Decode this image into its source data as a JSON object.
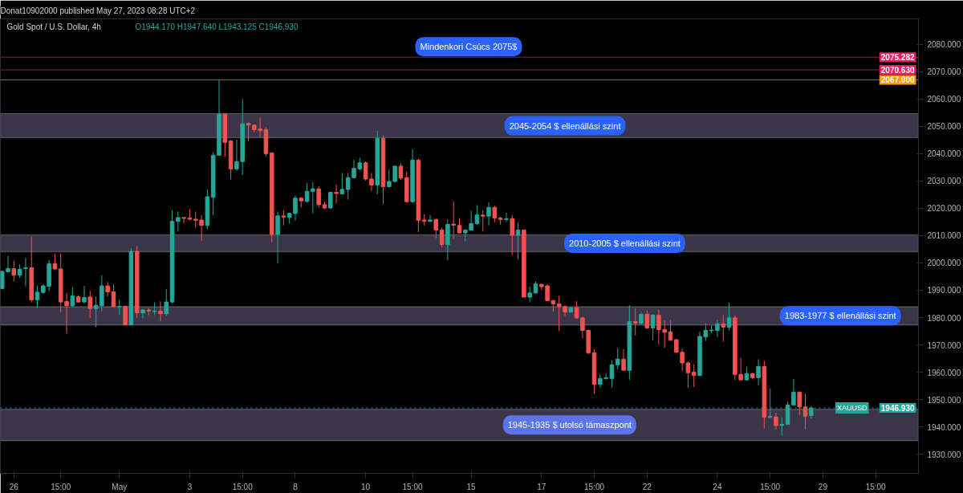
{
  "chart_data": {
    "type": "candlestick",
    "title": "Gold Spot / U.S. Dollar, 4h",
    "subtitle": "Donat10902000 published May 27, 2023 08:28 UTC+2",
    "annotations": [
      "O1944.170 H1947.640 L1943.125 C1946.930",
      {
        "text": "Mindenkori Csúcs 2075$",
        "y": 2075.282
      },
      {
        "text": "XAUUSD",
        "y": 1946.93
      }
    ],
    "categories": [
      null,
      null,
      "26",
      null,
      null,
      null,
      null,
      null,
      null,
      null,
      "15:00",
      null,
      null,
      null,
      null,
      null,
      null,
      null,
      null,
      null,
      "May",
      null,
      null,
      null,
      null,
      null,
      null,
      null,
      null,
      null,
      null,
      null,
      "3",
      null,
      null,
      null,
      null,
      null,
      null,
      null,
      null,
      "15:00",
      null,
      null,
      null,
      null,
      null,
      null,
      null,
      null,
      "8",
      null,
      null,
      null,
      null,
      null,
      null,
      null,
      null,
      null,
      null,
      null,
      "10",
      null,
      null,
      null,
      null,
      null,
      null,
      null,
      "15:00",
      null,
      null,
      null,
      null,
      null,
      null,
      null,
      null,
      null,
      "15",
      null,
      null,
      null,
      null,
      null,
      null,
      null,
      null,
      null,
      null,
      null,
      "17",
      null,
      null,
      null,
      null,
      null,
      null,
      null,
      null,
      "15:00",
      null,
      null,
      null,
      null,
      null,
      null,
      null,
      null,
      "22",
      null,
      null,
      null,
      null,
      null,
      null,
      null,
      null,
      null,
      null,
      null,
      "24",
      null,
      null,
      null,
      null,
      null,
      null,
      null,
      null,
      "15:00",
      null,
      null,
      null,
      null,
      null,
      null,
      null,
      null,
      "29",
      null,
      null,
      null,
      null,
      null,
      null,
      null,
      null,
      "15:00",
      null,
      null,
      null,
      null,
      null,
      null,
      null
    ],
    "ohlc": [
      [
        1990.6,
        1997.0,
        1990.4,
        1996.9
      ],
      [
        1996.8,
        2002.6,
        1996.5,
        1997.9
      ],
      [
        1997.9,
        2000.8,
        1993.2,
        1995.5
      ],
      [
        1995.5,
        1999.4,
        1994.5,
        1997.7
      ],
      [
        1997.9,
        2001.8,
        1991.4,
        1998.2
      ],
      [
        1998.2,
        2009.6,
        1985.5,
        1986.5
      ],
      [
        1986.5,
        1991.6,
        1983.5,
        1989.3
      ],
      [
        1989.2,
        1992.2,
        1988.8,
        1991.6
      ],
      [
        1991.5,
        2001.0,
        1989.8,
        1999.7
      ],
      [
        1999.7,
        2003.3,
        1997.4,
        1997.8
      ],
      [
        1997.8,
        2003.5,
        1982.0,
        1985.7
      ],
      [
        1985.9,
        1989.0,
        1974.1,
        1984.3
      ],
      [
        1984.3,
        1991.1,
        1984.0,
        1987.9
      ],
      [
        1987.6,
        1988.2,
        1985.4,
        1985.7
      ],
      [
        1985.7,
        1991.6,
        1985.1,
        1987.3
      ],
      [
        1987.5,
        1989.8,
        1979.9,
        1983.3
      ],
      [
        1983.3,
        1987.7,
        1976.5,
        1984.5
      ],
      [
        1984.3,
        1995.4,
        1982.3,
        1991.6
      ],
      [
        1991.6,
        1993.0,
        1987.7,
        1989.4
      ],
      [
        1989.4,
        1992.1,
        1983.8,
        1984.0
      ],
      [
        1984.0,
        1986.5,
        1980.9,
        1984.1
      ],
      [
        1984.1,
        1984.3,
        1977.3,
        1977.3
      ],
      [
        1977.3,
        2005.4,
        1977.3,
        2004.2
      ],
      [
        2004.2,
        2006.2,
        1979.9,
        1981.7
      ],
      [
        1981.7,
        1983.2,
        1979.7,
        1982.8
      ],
      [
        1982.8,
        1983.5,
        1980.9,
        1982.4
      ],
      [
        1982.2,
        1985.6,
        1980.9,
        1982.3
      ],
      [
        1982.3,
        1985.9,
        1978.5,
        1981.4
      ],
      [
        1981.4,
        1990.4,
        1980.6,
        1985.7
      ],
      [
        1985.7,
        2019.3,
        1985.2,
        2015.2
      ],
      [
        2015.2,
        2018.8,
        2011.5,
        2016.6
      ],
      [
        2016.6,
        2016.8,
        2014.4,
        2016.3
      ],
      [
        2016.4,
        2019.6,
        2015.6,
        2016.0
      ],
      [
        2016.0,
        2018.8,
        2013.0,
        2015.6
      ],
      [
        2015.7,
        2017.5,
        2008.1,
        2013.7
      ],
      [
        2013.7,
        2026.9,
        2012.3,
        2024.2
      ],
      [
        2024.0,
        2040.5,
        2017.4,
        2039.4
      ],
      [
        2039.4,
        2067.0,
        2039.4,
        2054.5
      ],
      [
        2054.5,
        2054.6,
        2038.8,
        2044.1
      ],
      [
        2044.6,
        2045.0,
        2030.5,
        2034.4
      ],
      [
        2034.4,
        2045.1,
        2033.8,
        2037.1
      ],
      [
        2037.1,
        2060.0,
        2032.1,
        2050.9
      ],
      [
        2051.0,
        2051.4,
        2044.6,
        2050.4
      ],
      [
        2050.4,
        2050.6,
        2047.7,
        2048.8
      ],
      [
        2049.0,
        2053.2,
        2045.8,
        2048.4
      ],
      [
        2048.8,
        2049.6,
        2038.9,
        2040.0
      ],
      [
        2040.2,
        2040.4,
        2007.6,
        2010.4
      ],
      [
        2010.4,
        2018.8,
        1999.8,
        2017.2
      ],
      [
        2017.2,
        2019.3,
        2013.7,
        2016.8
      ],
      [
        2016.7,
        2018.3,
        2014.4,
        2018.1
      ],
      [
        2018.1,
        2024.6,
        2015.4,
        2023.7
      ],
      [
        2023.7,
        2024.0,
        2020.3,
        2022.7
      ],
      [
        2022.5,
        2029.2,
        2022.0,
        2026.2
      ],
      [
        2026.2,
        2029.5,
        2018.1,
        2027.1
      ],
      [
        2027.1,
        2028.1,
        2020.3,
        2021.3
      ],
      [
        2021.3,
        2022.4,
        2019.7,
        2020.1
      ],
      [
        2020.1,
        2026.0,
        2019.9,
        2025.8
      ],
      [
        2025.8,
        2028.8,
        2021.7,
        2025.4
      ],
      [
        2025.3,
        2032.9,
        2025.0,
        2026.9
      ],
      [
        2026.9,
        2032.9,
        2023.2,
        2031.2
      ],
      [
        2031.2,
        2037.8,
        2031.0,
        2034.6
      ],
      [
        2034.4,
        2038.5,
        2033.9,
        2036.6
      ],
      [
        2036.6,
        2037.2,
        2030.1,
        2030.7
      ],
      [
        2030.7,
        2032.9,
        2026.3,
        2028.5
      ],
      [
        2028.5,
        2048.3,
        2025.1,
        2045.6
      ],
      [
        2045.6,
        2046.7,
        2021.7,
        2027.9
      ],
      [
        2027.9,
        2034.1,
        2027.6,
        2029.8
      ],
      [
        2029.8,
        2035.4,
        2029.5,
        2035.4
      ],
      [
        2035.4,
        2036.5,
        2030.4,
        2031.0
      ],
      [
        2031.2,
        2033.4,
        2022.0,
        2022.4
      ],
      [
        2022.4,
        2041.7,
        2022.0,
        2037.6
      ],
      [
        2037.6,
        2038.2,
        2011.3,
        2015.6
      ],
      [
        2015.7,
        2017.8,
        2013.7,
        2015.2
      ],
      [
        2015.2,
        2017.5,
        2015.0,
        2015.7
      ],
      [
        2015.9,
        2016.2,
        2009.1,
        2012.0
      ],
      [
        2012.0,
        2013.0,
        2005.7,
        2006.7
      ],
      [
        2006.7,
        2015.9,
        2001.0,
        2014.1
      ],
      [
        2014.2,
        2022.5,
        2008.6,
        2013.8
      ],
      [
        2013.7,
        2016.4,
        2010.8,
        2011.0
      ],
      [
        2011.0,
        2012.3,
        2007.9,
        2012.0
      ],
      [
        2012.0,
        2019.1,
        2011.8,
        2014.4
      ],
      [
        2014.4,
        2021.1,
        2013.9,
        2017.5
      ],
      [
        2017.5,
        2019.3,
        2011.5,
        2017.1
      ],
      [
        2017.1,
        2022.2,
        2013.7,
        2020.3
      ],
      [
        2020.3,
        2020.9,
        2014.9,
        2016.4
      ],
      [
        2016.4,
        2016.9,
        2014.0,
        2015.9
      ],
      [
        2015.9,
        2018.3,
        2015.0,
        2016.2
      ],
      [
        2016.2,
        2017.5,
        2002.8,
        2010.1
      ],
      [
        2010.1,
        2014.9,
        2001.3,
        2012.0
      ],
      [
        2012.0,
        2012.3,
        1987.5,
        1987.5
      ],
      [
        1987.5,
        1991.3,
        1985.5,
        1989.0
      ],
      [
        1989.0,
        1993.2,
        1988.8,
        1992.3
      ],
      [
        1992.1,
        1992.5,
        1990.1,
        1991.3
      ],
      [
        1991.6,
        1992.2,
        1986.0,
        1986.2
      ],
      [
        1986.2,
        1986.5,
        1982.2,
        1985.0
      ],
      [
        1985.0,
        1988.0,
        1975.0,
        1984.0
      ],
      [
        1984.0,
        1984.5,
        1980.6,
        1982.0
      ],
      [
        1982.0,
        1983.9,
        1981.8,
        1983.5
      ],
      [
        1983.6,
        1986.0,
        1979.5,
        1979.9
      ],
      [
        1979.9,
        1980.2,
        1972.4,
        1975.3
      ],
      [
        1975.3,
        1975.6,
        1966.5,
        1967.1
      ],
      [
        1967.1,
        1968.5,
        1952.0,
        1955.6
      ],
      [
        1955.6,
        1959.2,
        1954.3,
        1957.7
      ],
      [
        1957.7,
        1959.6,
        1957.3,
        1958.0
      ],
      [
        1957.7,
        1964.4,
        1954.3,
        1962.7
      ],
      [
        1962.7,
        1968.9,
        1961.1,
        1964.8
      ],
      [
        1964.8,
        1968.5,
        1960.5,
        1960.7
      ],
      [
        1960.7,
        1984.5,
        1957.2,
        1978.5
      ],
      [
        1978.5,
        1983.3,
        1973.5,
        1978.0
      ],
      [
        1977.9,
        1982.0,
        1977.5,
        1981.2
      ],
      [
        1981.2,
        1982.5,
        1975.8,
        1976.2
      ],
      [
        1976.2,
        1981.2,
        1971.7,
        1980.9
      ],
      [
        1980.9,
        1982.8,
        1970.2,
        1975.6
      ],
      [
        1975.6,
        1979.0,
        1968.9,
        1974.6
      ],
      [
        1974.8,
        1979.1,
        1971.5,
        1971.7
      ],
      [
        1971.9,
        1972.3,
        1967.1,
        1967.3
      ],
      [
        1967.3,
        1968.7,
        1960.5,
        1963.4
      ],
      [
        1963.4,
        1963.9,
        1954.3,
        1959.8
      ],
      [
        1960.0,
        1962.9,
        1954.6,
        1958.8
      ],
      [
        1958.8,
        1974.8,
        1958.5,
        1973.1
      ],
      [
        1972.9,
        1978.0,
        1971.4,
        1975.3
      ],
      [
        1975.2,
        1977.2,
        1974.3,
        1975.4
      ],
      [
        1975.3,
        1979.1,
        1972.9,
        1977.7
      ],
      [
        1977.7,
        1980.9,
        1971.2,
        1976.5
      ],
      [
        1976.5,
        1985.5,
        1975.3,
        1979.9
      ],
      [
        1979.9,
        1980.8,
        1957.1,
        1959.2
      ],
      [
        1959.2,
        1965.3,
        1957.0,
        1957.2
      ],
      [
        1957.2,
        1962.0,
        1956.9,
        1959.5
      ],
      [
        1959.5,
        1959.7,
        1957.5,
        1958.0
      ],
      [
        1958.0,
        1964.7,
        1955.2,
        1962.1
      ],
      [
        1962.1,
        1964.1,
        1939.5,
        1943.6
      ],
      [
        1943.5,
        1954.1,
        1943.3,
        1943.8
      ],
      [
        1943.6,
        1945.2,
        1939.1,
        1940.5
      ],
      [
        1940.5,
        1943.4,
        1936.8,
        1940.9
      ],
      [
        1940.9,
        1949.3,
        1940.6,
        1948.0
      ],
      [
        1948.0,
        1957.5,
        1947.6,
        1952.7
      ],
      [
        1952.7,
        1953.0,
        1944.4,
        1947.3
      ],
      [
        1947.3,
        1952.0,
        1939.1,
        1943.9
      ],
      [
        1944.17,
        1947.64,
        1943.125,
        1946.93
      ],
      null,
      null,
      null,
      null,
      null,
      null,
      null,
      null,
      null,
      null,
      null,
      null,
      null,
      null,
      null,
      null,
      null,
      null
    ],
    "ylim": [
      1923.0,
      2089.3
    ],
    "yticks": [
      {
        "value": 1930,
        "label": "1930.000"
      },
      {
        "value": 1940,
        "label": "1940.000"
      },
      {
        "value": 1950,
        "label": "1950.000"
      },
      {
        "value": 1960,
        "label": "1960.000"
      },
      {
        "value": 1970,
        "label": "1970.000"
      },
      {
        "value": 1980,
        "label": "1980.000"
      },
      {
        "value": 1990,
        "label": "1990.000"
      },
      {
        "value": 2000,
        "label": "2000.000"
      },
      {
        "value": 2010,
        "label": "2010.000"
      },
      {
        "value": 2020,
        "label": "2020.000"
      },
      {
        "value": 2030,
        "label": "2030.000"
      },
      {
        "value": 2040,
        "label": "2040.000"
      },
      {
        "value": 2050,
        "label": "2050.000"
      },
      {
        "value": 2060,
        "label": "2060.000"
      },
      {
        "value": 2070,
        "label": "2070.000"
      },
      {
        "value": 2080,
        "label": "2080.000"
      }
    ],
    "ref_lines": [
      {
        "axis": "y",
        "value": 2075.282,
        "label": "2075.282",
        "color": "#e91e63"
      },
      {
        "axis": "y",
        "value": 2070.63,
        "label": "2070.630",
        "color": "#e91e63"
      },
      {
        "axis": "y",
        "value": 2067.0,
        "label": "2067.000",
        "color": "#ff9800"
      },
      {
        "axis": "y",
        "value": 1946.93,
        "label": "1946.930",
        "color": "#26a69a",
        "line_style": "dotted"
      }
    ],
    "bands": [
      {
        "axis": "y",
        "from": 2045.8,
        "to": 2054.6,
        "label": "2045-2054 $ ellenállási szint",
        "color": "#3b3547"
      },
      {
        "axis": "y",
        "from": 2004.1,
        "to": 2010.3,
        "label": "2010-2005 $ ellenállási szint",
        "color": "#3b3547"
      },
      {
        "axis": "y",
        "from": 1977.3,
        "to": 1984.0,
        "label": "1983-1977 $ ellenállási szint",
        "color": "#3b3547"
      },
      {
        "axis": "y",
        "from": 1935.0,
        "to": 1946.4,
        "label": "1945-1935 $ utolsó támaszpont",
        "color": "#3b3547"
      }
    ],
    "grid": false
  }
}
